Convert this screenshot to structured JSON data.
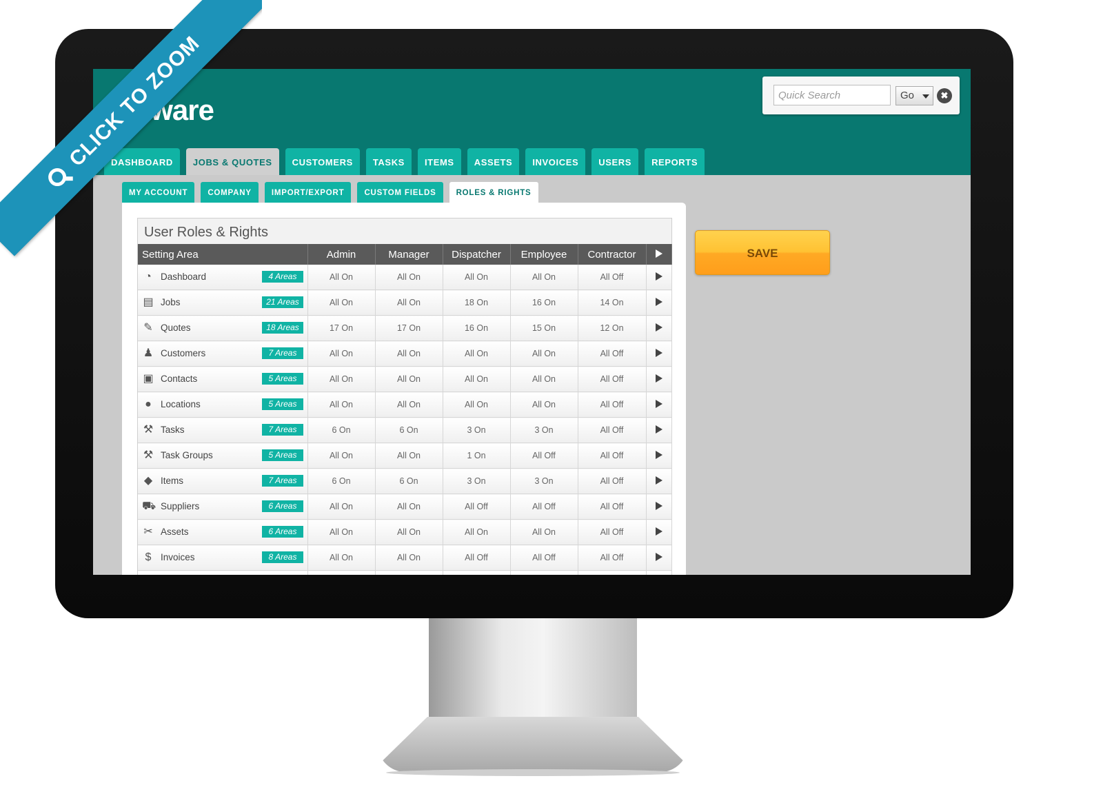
{
  "app": {
    "logo_text": "dAware"
  },
  "search": {
    "placeholder": "Quick Search",
    "go_label": "Go",
    "clear_label": "✖"
  },
  "main_tabs": [
    {
      "label": "DASHBOARD",
      "active": false
    },
    {
      "label": "JOBS & QUOTES",
      "active": true
    },
    {
      "label": "CUSTOMERS",
      "active": false
    },
    {
      "label": "TASKS",
      "active": false
    },
    {
      "label": "ITEMS",
      "active": false
    },
    {
      "label": "ASSETS",
      "active": false
    },
    {
      "label": "INVOICES",
      "active": false
    },
    {
      "label": "USERS",
      "active": false
    },
    {
      "label": "REPORTS",
      "active": false
    }
  ],
  "sub_tabs": [
    {
      "label": "MY ACCOUNT",
      "active": false
    },
    {
      "label": "COMPANY",
      "active": false
    },
    {
      "label": "IMPORT/EXPORT",
      "active": false
    },
    {
      "label": "CUSTOM FIELDS",
      "active": false
    },
    {
      "label": "ROLES & RIGHTS",
      "active": true
    }
  ],
  "panel": {
    "title": "User Roles & Rights"
  },
  "table": {
    "headers": [
      "Setting Area",
      "Admin",
      "Manager",
      "Dispatcher",
      "Employee",
      "Contractor"
    ],
    "rows": [
      {
        "name": "Dashboard",
        "icon": "dashboard-icon",
        "glyph": "◔",
        "badge": "4 Areas",
        "values": [
          "All On",
          "All On",
          "All On",
          "All On",
          "All Off"
        ]
      },
      {
        "name": "Jobs",
        "icon": "toolbox-icon",
        "glyph": "▤",
        "badge": "21 Areas",
        "values": [
          "All On",
          "All On",
          "18 On",
          "16 On",
          "14 On"
        ]
      },
      {
        "name": "Quotes",
        "icon": "pencil-icon",
        "glyph": "✎",
        "badge": "18 Areas",
        "values": [
          "17 On",
          "17 On",
          "16 On",
          "15 On",
          "12 On"
        ]
      },
      {
        "name": "Customers",
        "icon": "person-icon",
        "glyph": "♟",
        "badge": "7 Areas",
        "values": [
          "All On",
          "All On",
          "All On",
          "All On",
          "All Off"
        ]
      },
      {
        "name": "Contacts",
        "icon": "address-book-icon",
        "glyph": "▣",
        "badge": "5 Areas",
        "values": [
          "All On",
          "All On",
          "All On",
          "All On",
          "All Off"
        ]
      },
      {
        "name": "Locations",
        "icon": "map-pin-icon",
        "glyph": "●",
        "badge": "5 Areas",
        "values": [
          "All On",
          "All On",
          "All On",
          "All On",
          "All Off"
        ]
      },
      {
        "name": "Tasks",
        "icon": "hammer-icon",
        "glyph": "⚒",
        "badge": "7 Areas",
        "values": [
          "6 On",
          "6 On",
          "3 On",
          "3 On",
          "All Off"
        ]
      },
      {
        "name": "Task Groups",
        "icon": "hammer-icon",
        "glyph": "⚒",
        "badge": "5 Areas",
        "values": [
          "All On",
          "All On",
          "1 On",
          "All Off",
          "All Off"
        ]
      },
      {
        "name": "Items",
        "icon": "box-icon",
        "glyph": "◆",
        "badge": "7 Areas",
        "values": [
          "6 On",
          "6 On",
          "3 On",
          "3 On",
          "All Off"
        ]
      },
      {
        "name": "Suppliers",
        "icon": "cart-icon",
        "glyph": "⛟",
        "badge": "6 Areas",
        "values": [
          "All On",
          "All On",
          "All Off",
          "All Off",
          "All Off"
        ]
      },
      {
        "name": "Assets",
        "icon": "wrench-icon",
        "glyph": "✂",
        "badge": "6 Areas",
        "values": [
          "All On",
          "All On",
          "All On",
          "All On",
          "All Off"
        ]
      },
      {
        "name": "Invoices",
        "icon": "dollar-icon",
        "glyph": "$",
        "badge": "8 Areas",
        "values": [
          "All On",
          "All On",
          "All Off",
          "All Off",
          "All Off"
        ]
      },
      {
        "name": "",
        "icon": "",
        "glyph": "",
        "badge": "",
        "values": [
          "",
          "",
          "",
          "",
          ""
        ]
      }
    ]
  },
  "save_label": "SAVE",
  "ribbon": {
    "label": "CLICK TO ZOOM",
    "icon": "magnifier-icon"
  },
  "colors": {
    "header_teal": "#087870",
    "tab_teal": "#10b3a4",
    "save_orange": "#ffb02e",
    "ribbon_blue": "#1d93b9"
  }
}
